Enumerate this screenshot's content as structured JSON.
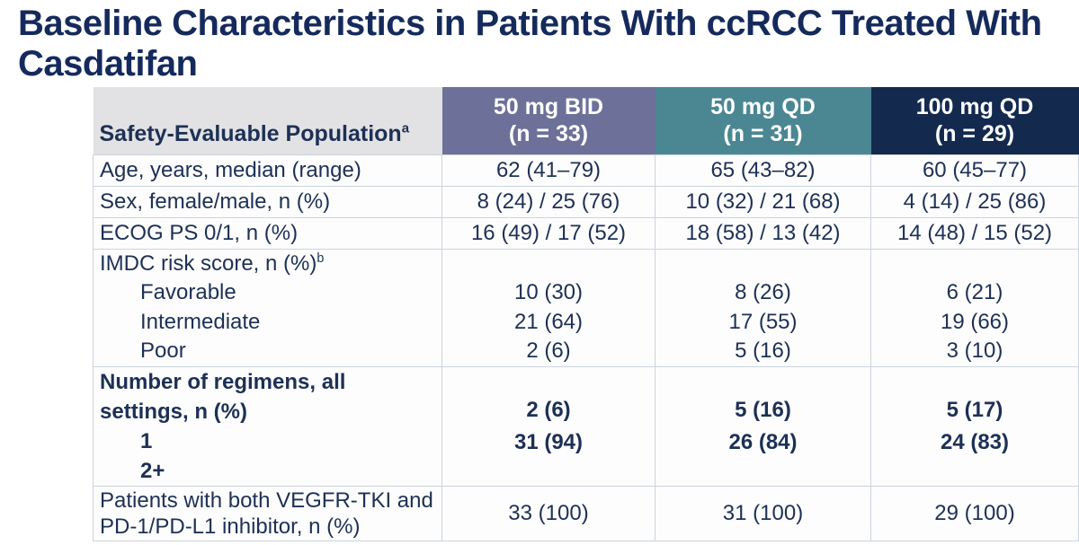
{
  "title": "Baseline Characteristics in Patients With ccRCC Treated With Casdatifan",
  "table": {
    "corner_label": "Safety-Evaluable Population",
    "corner_label_sup": "a",
    "columns": [
      {
        "dose": "50 mg BID",
        "n": "(n = 33)"
      },
      {
        "dose": "50 mg QD",
        "n": "(n = 31)"
      },
      {
        "dose": "100 mg QD",
        "n": "(n = 29)"
      }
    ],
    "simple_rows": [
      {
        "label": "Age, years, median (range)",
        "values": [
          "62 (41–79)",
          "65 (43–82)",
          "60 (45–77)"
        ]
      },
      {
        "label": "Sex, female/male, n (%)",
        "values": [
          "8 (24) / 25 (76)",
          "10 (32) / 21 (68)",
          "4 (14) / 25 (86)"
        ]
      },
      {
        "label": "ECOG PS 0/1, n (%)",
        "values": [
          "16 (49) / 17 (52)",
          "18 (58) / 13 (42)",
          "14 (48) / 15 (52)"
        ]
      }
    ],
    "imdc": {
      "label": "IMDC risk score, n (%)",
      "label_sup": "b",
      "items": [
        {
          "label": "Favorable",
          "values": [
            "10 (30)",
            "8 (26)",
            "6 (21)"
          ]
        },
        {
          "label": "Intermediate",
          "values": [
            "21 (64)",
            "17 (55)",
            "19 (66)"
          ]
        },
        {
          "label": "Poor",
          "values": [
            "2 (6)",
            "5 (16)",
            "3 (10)"
          ]
        }
      ]
    },
    "regimens": {
      "label": "Number of regimens, all settings, n (%)",
      "items": [
        {
          "label": "1",
          "values": [
            "2 (6)",
            "5 (16)",
            "5 (17)"
          ]
        },
        {
          "label": "2+",
          "values": [
            "31 (94)",
            "26 (84)",
            "24 (83)"
          ]
        }
      ]
    },
    "last_row": {
      "label": "Patients with both VEGFR-TKI and PD-1/PD-L1 inhibitor, n (%)",
      "values": [
        "33 (100)",
        "31 (100)",
        "29 (100)"
      ]
    }
  },
  "colors": {
    "title_text": "#152a5c",
    "body_text": "#1d3055",
    "header_gray_bg": "#e2e2e4",
    "col1_bg": "#6d7099",
    "col2_bg": "#4a8793",
    "col3_bg": "#13294e",
    "header_text": "#ffffff",
    "border": "#ccd4dd",
    "body_bg": "#fdfdfd"
  }
}
